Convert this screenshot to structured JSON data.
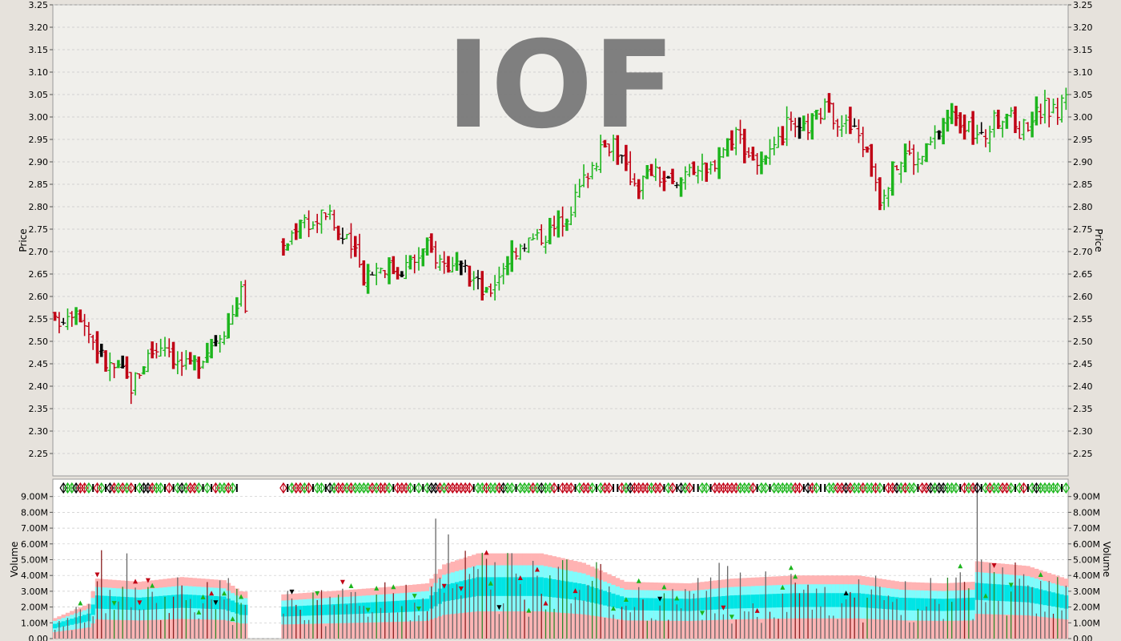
{
  "colors": {
    "background": "#e6e2dc",
    "plot_bg": "#f0efeb",
    "volume_plot_bg": "#ffffff",
    "up": "#1db51d",
    "down": "#c00014",
    "neutral": "#000000",
    "volume_band_pink": "#ffb3b3",
    "volume_band_cyan": "#7ffcfc",
    "volume_band_teal": "#00e5e5",
    "watermark": "#7a7a7a",
    "grid": "#c8c8c8"
  },
  "chart_data": [
    {
      "type": "ohlc-bar",
      "panel": "price",
      "watermark": "IOF",
      "ylabel": "Price",
      "ylim": [
        2.2,
        3.25
      ],
      "yticks": [
        "2.25",
        "2.30",
        "2.35",
        "2.40",
        "2.45",
        "2.50",
        "2.55",
        "2.60",
        "2.65",
        "2.70",
        "2.75",
        "2.80",
        "2.85",
        "2.90",
        "2.95",
        "3.00",
        "3.05",
        "3.10",
        "3.15",
        "3.20",
        "3.25"
      ],
      "grid": true,
      "axis_right_duplicate": true,
      "gap_sessions": [
        45,
        54
      ],
      "session_count": 225,
      "close_series": [
        {
          "i": 0,
          "c": 2.54
        },
        {
          "i": 5,
          "c": 2.58
        },
        {
          "i": 8,
          "c": 2.52
        },
        {
          "i": 12,
          "c": 2.45
        },
        {
          "i": 16,
          "c": 2.43
        },
        {
          "i": 18,
          "c": 2.4
        },
        {
          "i": 22,
          "c": 2.47
        },
        {
          "i": 26,
          "c": 2.5
        },
        {
          "i": 29,
          "c": 2.45
        },
        {
          "i": 32,
          "c": 2.44
        },
        {
          "i": 35,
          "c": 2.47
        },
        {
          "i": 38,
          "c": 2.51
        },
        {
          "i": 41,
          "c": 2.54
        },
        {
          "i": 44,
          "c": 2.61
        },
        {
          "i": 45,
          "c": 2.58
        },
        {
          "i": 54,
          "c": 2.7
        },
        {
          "i": 58,
          "c": 2.78
        },
        {
          "i": 61,
          "c": 2.76
        },
        {
          "i": 64,
          "c": 2.79
        },
        {
          "i": 67,
          "c": 2.74
        },
        {
          "i": 70,
          "c": 2.71
        },
        {
          "i": 73,
          "c": 2.65
        },
        {
          "i": 77,
          "c": 2.67
        },
        {
          "i": 81,
          "c": 2.66
        },
        {
          "i": 85,
          "c": 2.68
        },
        {
          "i": 88,
          "c": 2.71
        },
        {
          "i": 91,
          "c": 2.68
        },
        {
          "i": 95,
          "c": 2.66
        },
        {
          "i": 99,
          "c": 2.64
        },
        {
          "i": 102,
          "c": 2.6
        },
        {
          "i": 106,
          "c": 2.67
        },
        {
          "i": 110,
          "c": 2.72
        },
        {
          "i": 114,
          "c": 2.73
        },
        {
          "i": 118,
          "c": 2.75
        },
        {
          "i": 122,
          "c": 2.8
        },
        {
          "i": 126,
          "c": 2.88
        },
        {
          "i": 129,
          "c": 2.92
        },
        {
          "i": 132,
          "c": 2.95
        },
        {
          "i": 135,
          "c": 2.88
        },
        {
          "i": 138,
          "c": 2.85
        },
        {
          "i": 141,
          "c": 2.88
        },
        {
          "i": 144,
          "c": 2.86
        },
        {
          "i": 147,
          "c": 2.84
        },
        {
          "i": 150,
          "c": 2.9
        },
        {
          "i": 154,
          "c": 2.87
        },
        {
          "i": 157,
          "c": 2.92
        },
        {
          "i": 161,
          "c": 2.97
        },
        {
          "i": 164,
          "c": 2.92
        },
        {
          "i": 167,
          "c": 2.89
        },
        {
          "i": 170,
          "c": 2.92
        },
        {
          "i": 173,
          "c": 2.98
        },
        {
          "i": 176,
          "c": 2.96
        },
        {
          "i": 179,
          "c": 2.99
        },
        {
          "i": 182,
          "c": 3.02
        },
        {
          "i": 186,
          "c": 2.99
        },
        {
          "i": 190,
          "c": 2.96
        },
        {
          "i": 193,
          "c": 2.9
        },
        {
          "i": 195,
          "c": 2.82
        },
        {
          "i": 198,
          "c": 2.88
        },
        {
          "i": 201,
          "c": 2.92
        },
        {
          "i": 204,
          "c": 2.9
        },
        {
          "i": 207,
          "c": 2.94
        },
        {
          "i": 210,
          "c": 2.99
        },
        {
          "i": 213,
          "c": 3.01
        },
        {
          "i": 216,
          "c": 2.97
        },
        {
          "i": 219,
          "c": 2.95
        },
        {
          "i": 222,
          "c": 2.99
        },
        {
          "i": 225,
          "c": 3.01
        },
        {
          "i": 228,
          "c": 2.97
        },
        {
          "i": 231,
          "c": 3.0
        },
        {
          "i": 234,
          "c": 3.02
        },
        {
          "i": 237,
          "c": 3.01
        },
        {
          "i": 239,
          "c": 3.06
        }
      ]
    },
    {
      "type": "bar",
      "panel": "volume",
      "ylabel": "Volume",
      "ylim": [
        0,
        10000000
      ],
      "yticks": [
        "0.00",
        "1.00M",
        "2.00M",
        "3.00M",
        "4.00M",
        "5.00M",
        "6.00M",
        "7.00M",
        "8.00M",
        "9.00M"
      ],
      "grid": true,
      "axis_right_duplicate": true,
      "volume_band_avg": [
        {
          "i": 0,
          "v": 1.3
        },
        {
          "i": 8,
          "v": 2.2
        },
        {
          "i": 10,
          "v": 3.8
        },
        {
          "i": 20,
          "v": 3.6
        },
        {
          "i": 30,
          "v": 3.9
        },
        {
          "i": 40,
          "v": 3.7
        },
        {
          "i": 44,
          "v": 3.0
        },
        {
          "i": 54,
          "v": 2.8
        },
        {
          "i": 70,
          "v": 3.1
        },
        {
          "i": 80,
          "v": 3.3
        },
        {
          "i": 88,
          "v": 3.5
        },
        {
          "i": 92,
          "v": 4.7
        },
        {
          "i": 100,
          "v": 5.4
        },
        {
          "i": 115,
          "v": 5.4
        },
        {
          "i": 125,
          "v": 4.8
        },
        {
          "i": 135,
          "v": 3.6
        },
        {
          "i": 150,
          "v": 3.5
        },
        {
          "i": 160,
          "v": 3.8
        },
        {
          "i": 175,
          "v": 4.0
        },
        {
          "i": 190,
          "v": 4.0
        },
        {
          "i": 200,
          "v": 3.6
        },
        {
          "i": 210,
          "v": 3.5
        },
        {
          "i": 217,
          "v": 3.6
        },
        {
          "i": 218,
          "v": 4.9
        },
        {
          "i": 230,
          "v": 4.6
        },
        {
          "i": 239,
          "v": 3.8
        }
      ],
      "volume_spikes": [
        {
          "i": 11,
          "v": 5.6
        },
        {
          "i": 17,
          "v": 5.4
        },
        {
          "i": 90,
          "v": 7.6
        },
        {
          "i": 93,
          "v": 6.6
        },
        {
          "i": 157,
          "v": 4.8
        },
        {
          "i": 159,
          "v": 4.6
        },
        {
          "i": 174,
          "v": 4.1
        },
        {
          "i": 214,
          "v": 4.2
        },
        {
          "i": 218,
          "v": 9.9
        }
      ],
      "volume_units": "M"
    }
  ]
}
